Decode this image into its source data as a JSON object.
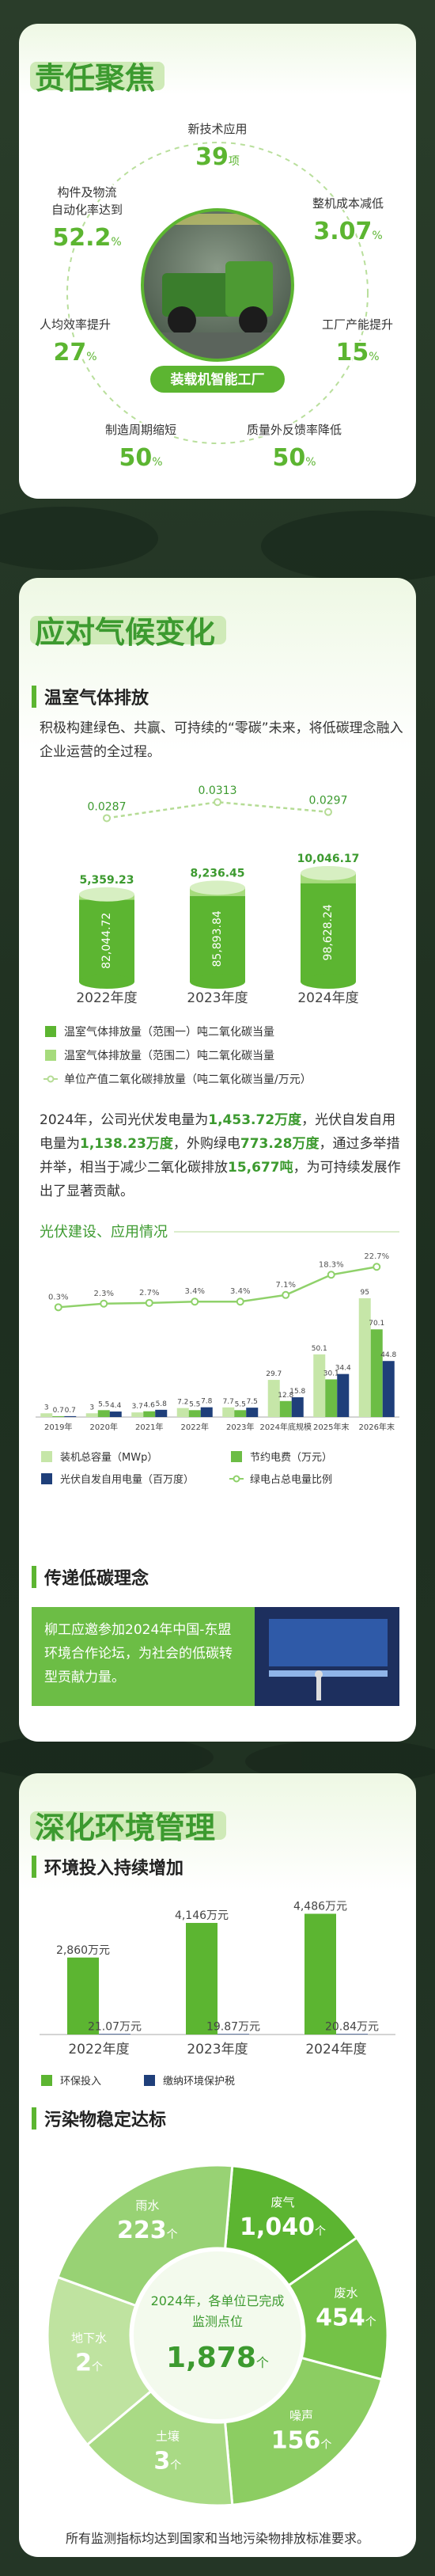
{
  "focus": {
    "title": "责任聚焦",
    "center": "装载机智能工厂",
    "items": [
      {
        "label": [
          "新技术应用"
        ],
        "value": "39",
        "unit": "项"
      },
      {
        "label": [
          "整机成本减低"
        ],
        "value": "3.07",
        "unit": "%"
      },
      {
        "label": [
          "构件及物流",
          "自动化率达到"
        ],
        "value": "52.2",
        "unit": "%"
      },
      {
        "label": [
          "人均效率提升"
        ],
        "value": "27",
        "unit": "%"
      },
      {
        "label": [
          "工厂产能提升"
        ],
        "value": "15",
        "unit": "%"
      },
      {
        "label": [
          "制造周期缩短"
        ],
        "value": "50",
        "unit": "%"
      },
      {
        "label": [
          "质量外反馈率降低"
        ],
        "value": "50",
        "unit": "%"
      }
    ]
  },
  "climate": {
    "title": "应对气候变化",
    "ghg_heading": "温室气体排放",
    "ghg_text": "积极构建绿色、共赢、可持续的“零碳”未来，将低碳理念融入企业运营的全过程。",
    "pv_text": [
      "2024年，公司光伏发电量为",
      "1,453.72万度",
      "，光伏自发自用电量为",
      "1,138.23万度",
      "，外购绿电",
      "773.28万度",
      "，通过多举措并举，相当于减少二氧化碳排放",
      "15,677吨",
      "，为可持续发展作出了显著贡献。"
    ],
    "lowcarbon_heading": "传递低碳理念",
    "lowcarbon_text": "柳工应邀参加2024年中国-东盟环境合作论坛，为社会的低碳转型贡献力量。"
  },
  "environment": {
    "title": "深化环境管理",
    "invest_heading": "环境投入持续增加",
    "pollutant_heading": "污染物稳定达标",
    "pollutant_center": [
      "2024年，各单位已完成",
      "监测点位"
    ],
    "pollutant_total": "1,878",
    "pollutant_total_unit": "个",
    "pollutants": [
      {
        "name": "废气",
        "value": "1,040",
        "unit": "个"
      },
      {
        "name": "废水",
        "value": "454",
        "unit": "个"
      },
      {
        "name": "噪声",
        "value": "156",
        "unit": "个"
      },
      {
        "name": "土壤",
        "value": "3",
        "unit": "个"
      },
      {
        "name": "地下水",
        "value": "2",
        "unit": "个"
      },
      {
        "name": "雨水",
        "value": "223",
        "unit": "个"
      }
    ],
    "footnote": "所有监测指标均达到国家和当地污染物排放标准要求。"
  },
  "chart_data": [
    {
      "type": "bar",
      "stacked": true,
      "categories": [
        "2022年度",
        "2023年度",
        "2024年度"
      ],
      "series": [
        {
          "name": "温室气体排放量（范围一）吨二氧化碳当量",
          "color": "#5cb531",
          "values": [
            82044.72,
            85893.84,
            98628.24
          ],
          "value_labels": [
            "82,044.72",
            "85,893.84",
            "98,628.24"
          ]
        },
        {
          "name": "温室气体排放量（范围二）吨二氧化碳当量",
          "color": "#a6db7c",
          "values": [
            5359.23,
            8236.45,
            10046.17
          ],
          "value_labels": [
            "5,359.23",
            "8,236.45",
            "10,046.17"
          ]
        },
        {
          "name": "单位产值二氧化碳排放量（吨二氧化碳当量/万元）",
          "type": "line",
          "axis": "y2",
          "color": "#b5dc95",
          "values": [
            0.0287,
            0.0313,
            0.0297
          ]
        }
      ],
      "ylim": [
        0,
        115000
      ],
      "y2lim": [
        0.024,
        0.033
      ]
    },
    {
      "type": "bar",
      "title": "光伏建设、应用情况",
      "categories": [
        "2019年",
        "2020年",
        "2021年",
        "2022年",
        "2023年",
        "2024年底规模",
        "2025年末",
        "2026年末"
      ],
      "series": [
        {
          "name": "装机总容量（MWp）",
          "color": "#c6e6a8",
          "values": [
            3,
            3,
            3.7,
            7.2,
            7.7,
            29.7,
            50.1,
            95
          ]
        },
        {
          "name": "节约电费（万元）",
          "color": "#6cbd45",
          "values": [
            0.7,
            5.5,
            4.6,
            5.5,
            5.5,
            12.8,
            30.1,
            70.1
          ]
        },
        {
          "name": "光伏自发自用电量（百万度）",
          "color": "#1f3f7a",
          "values": [
            0.7,
            4.4,
            5.8,
            7.8,
            7.5,
            15.8,
            34.4,
            44.8
          ]
        },
        {
          "name": "绿电占总电量比例",
          "type": "line",
          "axis": "y2",
          "color": "#8fd16a",
          "values": [
            0.3,
            2.3,
            2.7,
            3.4,
            3.4,
            7.1,
            18.3,
            22.7
          ],
          "value_labels": [
            "0.3%",
            "2.3%",
            "2.7%",
            "3.4%",
            "3.4%",
            "7.1%",
            "18.3%",
            "22.7%"
          ]
        }
      ],
      "ylim": [
        0,
        100
      ],
      "y2lim": [
        0,
        25
      ]
    },
    {
      "type": "bar",
      "categories": [
        "2022年度",
        "2023年度",
        "2024年度"
      ],
      "series": [
        {
          "name": "环保投入",
          "color": "#5cb531",
          "values": [
            2860,
            4146,
            4486
          ],
          "value_labels": [
            "2,860万元",
            "4,146万元",
            "4,486万元"
          ]
        },
        {
          "name": "缴纳环境保护税",
          "color": "#1f3f7a",
          "values": [
            21.07,
            19.87,
            20.84
          ],
          "value_labels": [
            "21.07万元",
            "19.87万元",
            "20.84万元"
          ]
        }
      ],
      "ylim": [
        0,
        5000
      ]
    }
  ]
}
